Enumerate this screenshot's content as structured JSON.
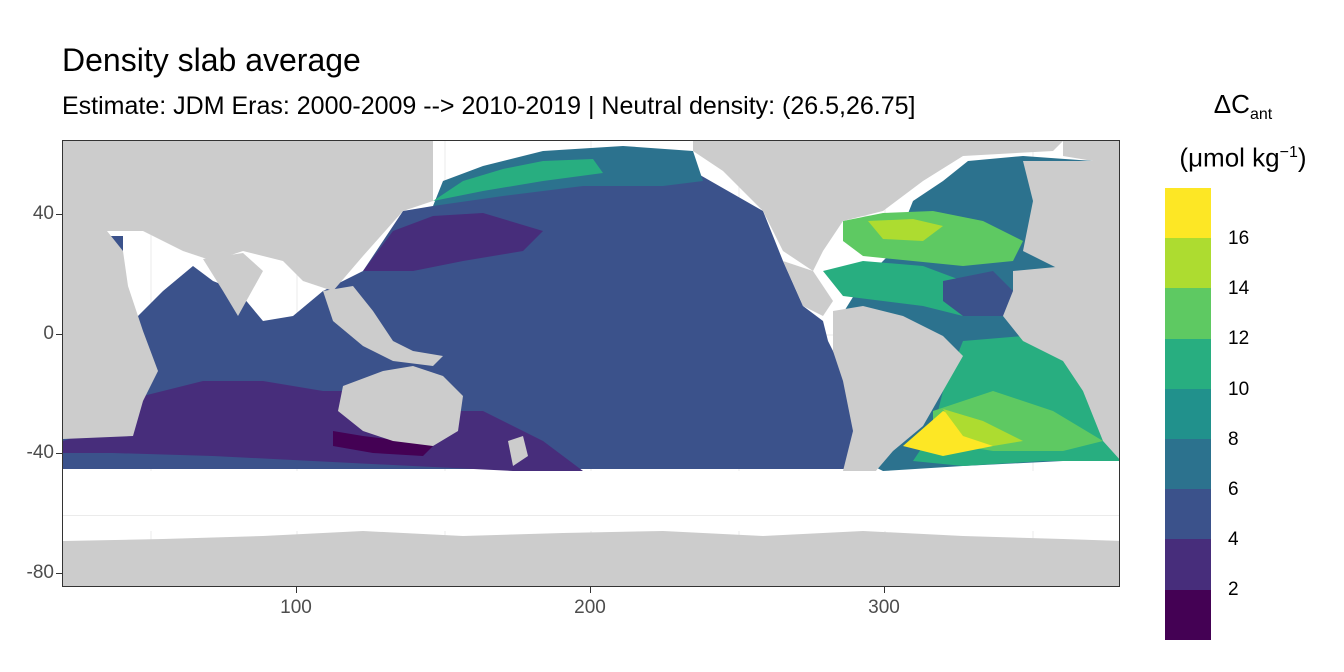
{
  "title": "Density slab average",
  "subtitle": "Estimate: JDM Eras: 2000-2009 --> 2010-2019 | Neutral density: (26.5,26.75]",
  "legend": {
    "title_main": "ΔC",
    "title_sub": "ant",
    "unit_prefix": "(μmol kg",
    "unit_sup": "−1",
    "unit_suffix": ")",
    "labels": [
      "16",
      "14",
      "12",
      "10",
      "8",
      "6",
      "4",
      "2"
    ],
    "colors": [
      "#fde725",
      "#addc30",
      "#5ec962",
      "#28ae80",
      "#21918c",
      "#2c728e",
      "#3b528b",
      "#472d7b",
      "#440154"
    ]
  },
  "chart_data": {
    "type": "heatmap",
    "title": "Density slab average",
    "subtitle": "Estimate: JDM Eras: 2000-2009 --> 2010-2019 | Neutral density: (26.5,26.75]",
    "xlabel": "",
    "ylabel": "",
    "x_ticks": [
      100,
      200,
      300
    ],
    "y_ticks": [
      40,
      0,
      -40,
      -80
    ],
    "xlim": [
      20,
      380
    ],
    "ylim": [
      -85,
      65
    ],
    "colorbar_title": "ΔCant (μmol kg−1)",
    "colorbar_breaks": [
      2,
      4,
      6,
      8,
      10,
      12,
      14,
      16
    ]
  }
}
